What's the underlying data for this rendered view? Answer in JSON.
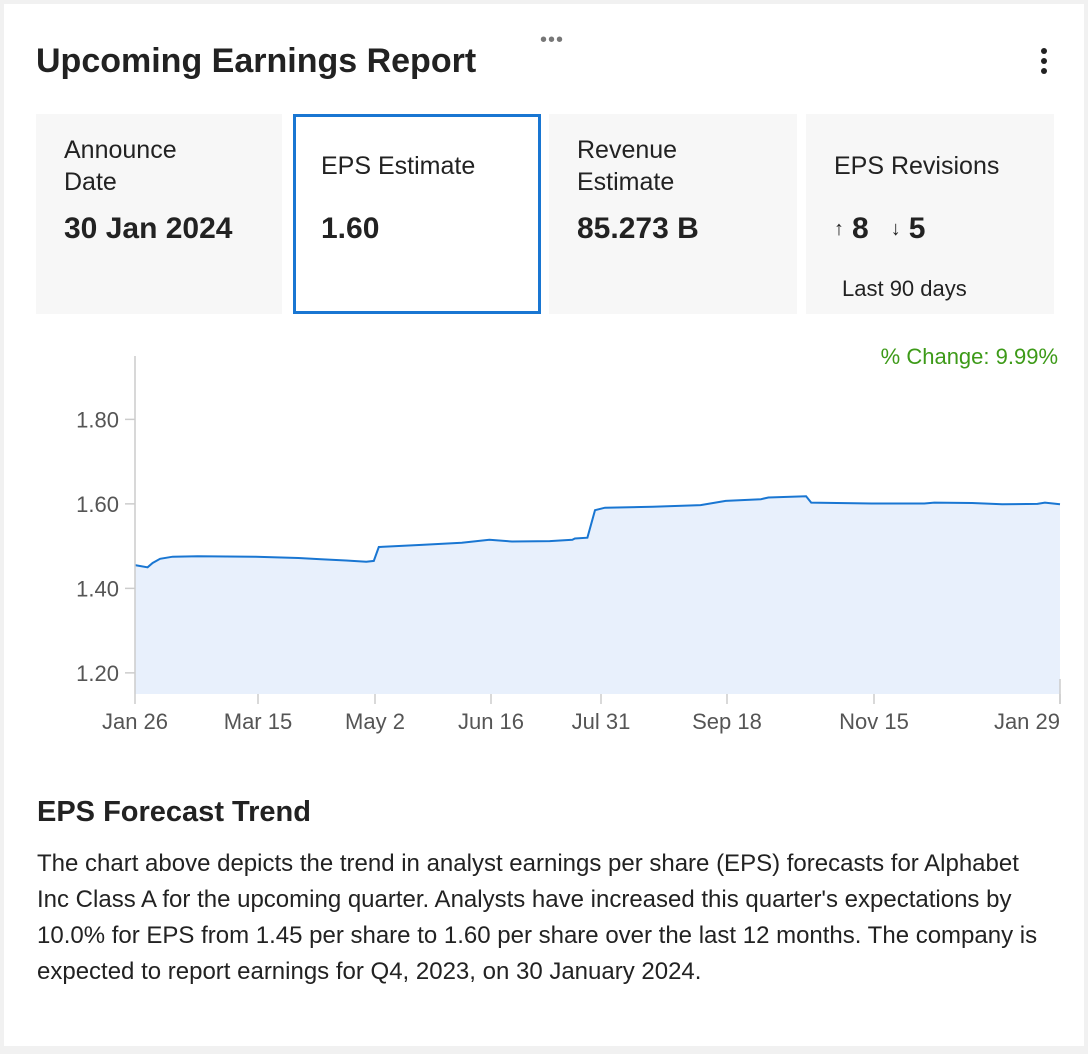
{
  "header": {
    "title": "Upcoming Earnings Report",
    "drag_handle": "•••",
    "menu_icon": "kebab-menu-icon"
  },
  "stats": {
    "announce": {
      "label_line1": "Announce",
      "label_line2": "Date",
      "value": "30 Jan 2024"
    },
    "eps": {
      "label": "EPS Estimate",
      "value": "1.60"
    },
    "revenue": {
      "label_line1": "Revenue",
      "label_line2": "Estimate",
      "value": "85.273 B"
    },
    "revisions": {
      "label": "EPS Revisions",
      "up_arrow": "↑",
      "up": "8",
      "down_arrow": "↓",
      "down": "5",
      "period": "Last 90 days"
    }
  },
  "pct_change": "% Change: 9.99%",
  "colors": {
    "line": "#1976d2",
    "fill": "#e8f0fc",
    "positive": "#3d9a18",
    "selected_border": "#1976d2"
  },
  "chart_data": {
    "type": "area",
    "x_ticks": [
      "Jan 26",
      "Mar 15",
      "May 2",
      "Jun 16",
      "Jul 31",
      "Sep 18",
      "Nov 15",
      "Jan 29"
    ],
    "y_ticks": [
      "1.80",
      "1.60",
      "1.40",
      "1.20"
    ],
    "ylim": [
      1.15,
      1.95
    ],
    "xlim": [
      "2023-01-26",
      "2024-01-29"
    ],
    "series": [
      {
        "points": [
          [
            "2023-01-26",
            1.455
          ],
          [
            "2023-01-31",
            1.45
          ],
          [
            "2023-02-02",
            1.46
          ],
          [
            "2023-02-05",
            1.47
          ],
          [
            "2023-02-10",
            1.475
          ],
          [
            "2023-02-20",
            1.476
          ],
          [
            "2023-03-15",
            1.475
          ],
          [
            "2023-04-01",
            1.472
          ],
          [
            "2023-04-10",
            1.469
          ],
          [
            "2023-04-20",
            1.466
          ],
          [
            "2023-04-28",
            1.463
          ],
          [
            "2023-05-01",
            1.465
          ],
          [
            "2023-05-03",
            1.498
          ],
          [
            "2023-05-20",
            1.503
          ],
          [
            "2023-06-05",
            1.508
          ],
          [
            "2023-06-16",
            1.515
          ],
          [
            "2023-06-25",
            1.511
          ],
          [
            "2023-07-10",
            1.512
          ],
          [
            "2023-07-19",
            1.515
          ],
          [
            "2023-07-20",
            1.518
          ],
          [
            "2023-07-25",
            1.52
          ],
          [
            "2023-07-28",
            1.585
          ],
          [
            "2023-08-01",
            1.591
          ],
          [
            "2023-08-20",
            1.593
          ],
          [
            "2023-09-08",
            1.597
          ],
          [
            "2023-09-18",
            1.607
          ],
          [
            "2023-10-02",
            1.611
          ],
          [
            "2023-10-05",
            1.615
          ],
          [
            "2023-10-20",
            1.618
          ],
          [
            "2023-10-22",
            1.603
          ],
          [
            "2023-11-15",
            1.601
          ],
          [
            "2023-12-06",
            1.601
          ],
          [
            "2023-12-10",
            1.603
          ],
          [
            "2023-12-25",
            1.602
          ],
          [
            "2024-01-06",
            1.599
          ],
          [
            "2024-01-20",
            1.6
          ],
          [
            "2024-01-23",
            1.603
          ],
          [
            "2024-01-29",
            1.599
          ]
        ]
      }
    ]
  },
  "section": {
    "title": "EPS Forecast Trend",
    "description": "The chart above depicts the trend in analyst earnings per share (EPS) forecasts for Alphabet Inc Class A for the upcoming quarter. Analysts have increased this quarter's expectations by 10.0% for EPS from 1.45 per share to 1.60 per share over the last 12 months. The company is expected to report earnings for Q4, 2023, on 30 January 2024."
  }
}
